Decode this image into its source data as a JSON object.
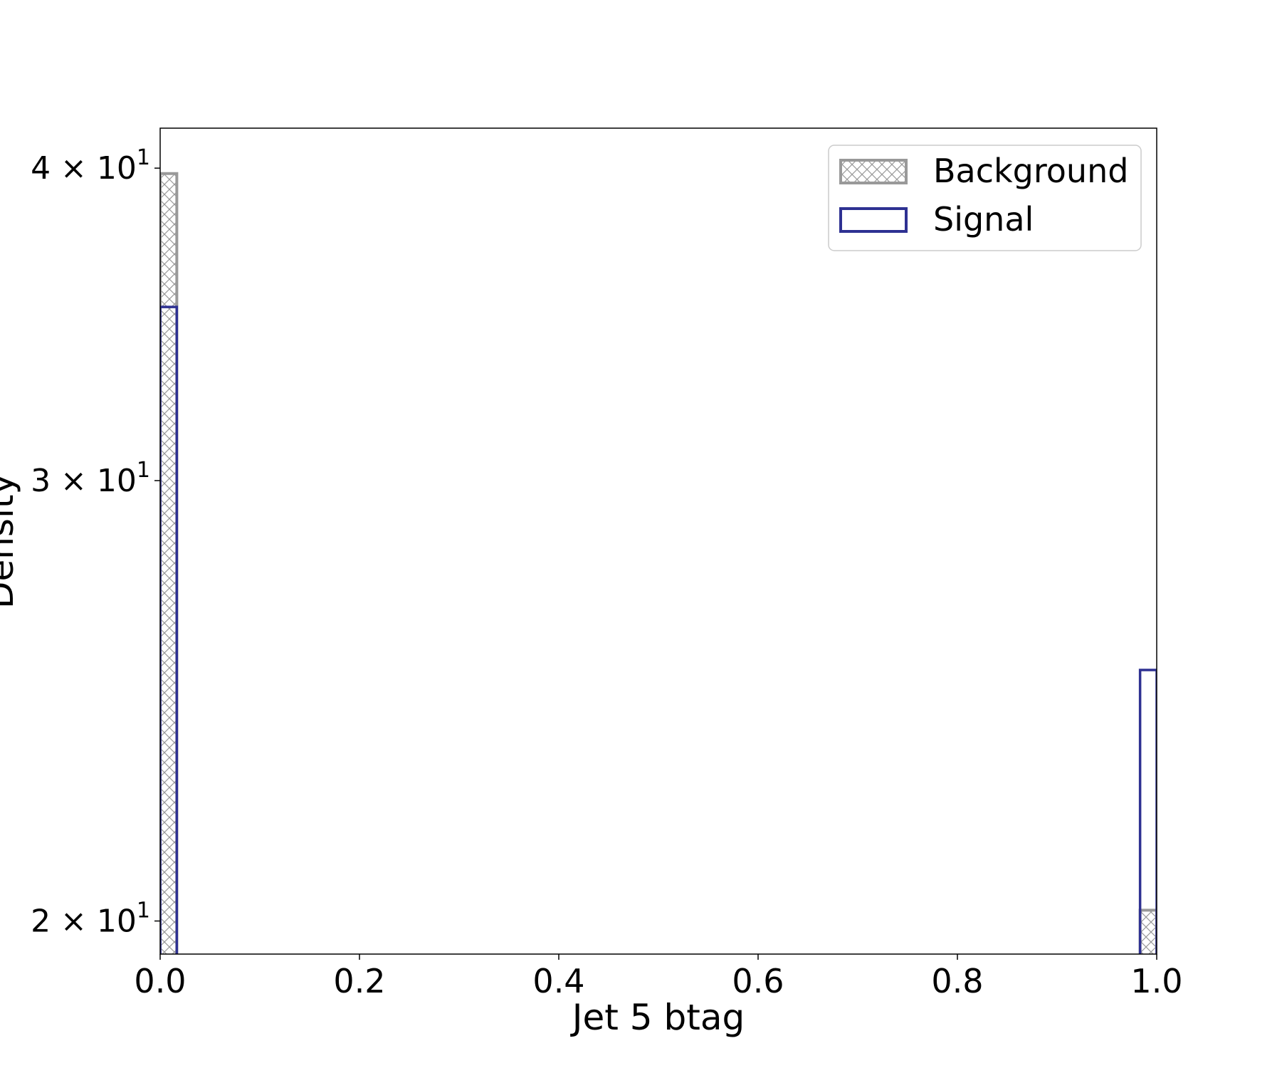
{
  "chart_data": {
    "type": "histogram",
    "xlabel": "Jet 5 btag",
    "ylabel": "Density",
    "xlim": [
      0.0,
      1.0
    ],
    "ylim": [
      19.4,
      41.5
    ],
    "yscale": "log",
    "grid": false,
    "legend_position": "top-right",
    "x_ticks": [
      "0.0",
      "0.2",
      "0.4",
      "0.6",
      "0.8",
      "1.0"
    ],
    "y_ticks": [
      {
        "value": 20,
        "mantissa": "2",
        "base": "10",
        "exp": "1"
      },
      {
        "value": 30,
        "mantissa": "3",
        "base": "10",
        "exp": "1"
      },
      {
        "value": 40,
        "mantissa": "4",
        "base": "10",
        "exp": "1"
      }
    ],
    "bin_width": 0.0167,
    "series": [
      {
        "name": "Background",
        "style": "hatched",
        "color": "#999999",
        "bins": [
          {
            "x0": 0.0,
            "value": 39.8
          },
          {
            "x0": 0.9833,
            "value": 20.2
          }
        ]
      },
      {
        "name": "Signal",
        "style": "step",
        "color": "#2e3192",
        "bins": [
          {
            "x0": 0.0,
            "value": 35.2
          },
          {
            "x0": 0.9833,
            "value": 25.2
          }
        ]
      }
    ]
  }
}
